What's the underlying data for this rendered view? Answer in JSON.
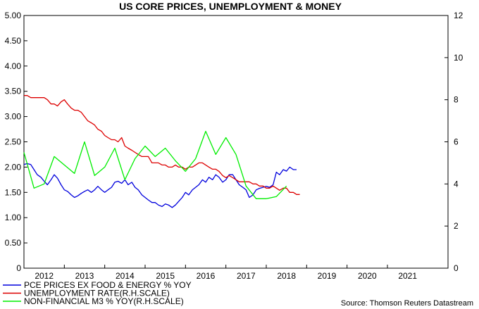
{
  "chart_data": {
    "type": "line",
    "title": "US CORE PRICES, UNEMPLOYMENT & MONEY",
    "source": "Source: Thomson Reuters Datastream",
    "x_ticks": [
      "2012",
      "2013",
      "2014",
      "2015",
      "2016",
      "2017",
      "2018",
      "2019",
      "2020",
      "2021"
    ],
    "x_range": [
      2011.5,
      2022.0
    ],
    "y_left": {
      "min": 0,
      "max": 5,
      "ticks": [
        "0",
        "0.50",
        "1.00",
        "1.50",
        "2.00",
        "2.50",
        "3.00",
        "3.50",
        "4.00",
        "4.50",
        "5.00"
      ]
    },
    "y_right": {
      "min": 0,
      "max": 12,
      "ticks": [
        "0",
        "2",
        "4",
        "6",
        "8",
        "10",
        "12"
      ]
    },
    "series": [
      {
        "name": "PCE PRICES EX FOOD & ENERGY % YOY",
        "axis": "left",
        "color": "#0000dd",
        "x": [
          2011.5,
          2011.58,
          2011.67,
          2011.75,
          2011.83,
          2011.92,
          2012.0,
          2012.08,
          2012.17,
          2012.25,
          2012.33,
          2012.42,
          2012.5,
          2012.58,
          2012.67,
          2012.75,
          2012.83,
          2012.92,
          2013.0,
          2013.08,
          2013.17,
          2013.25,
          2013.33,
          2013.42,
          2013.5,
          2013.58,
          2013.67,
          2013.75,
          2013.83,
          2013.92,
          2014.0,
          2014.08,
          2014.17,
          2014.25,
          2014.33,
          2014.42,
          2014.5,
          2014.58,
          2014.67,
          2014.75,
          2014.83,
          2014.92,
          2015.0,
          2015.08,
          2015.17,
          2015.25,
          2015.33,
          2015.42,
          2015.5,
          2015.58,
          2015.67,
          2015.75,
          2015.83,
          2015.92,
          2016.0,
          2016.08,
          2016.17,
          2016.25,
          2016.33,
          2016.42,
          2016.5,
          2016.58,
          2016.67,
          2016.75,
          2016.83,
          2016.92,
          2017.0,
          2017.08,
          2017.17,
          2017.25,
          2017.33,
          2017.42,
          2017.5,
          2017.58,
          2017.67,
          2017.75,
          2017.83,
          2017.92,
          2018.0,
          2018.08,
          2018.17,
          2018.25
        ],
        "y": [
          2.05,
          2.07,
          2.05,
          1.95,
          1.85,
          1.8,
          1.72,
          1.65,
          1.75,
          1.85,
          1.78,
          1.65,
          1.55,
          1.52,
          1.45,
          1.4,
          1.43,
          1.48,
          1.52,
          1.55,
          1.5,
          1.55,
          1.62,
          1.55,
          1.5,
          1.55,
          1.6,
          1.7,
          1.72,
          1.68,
          1.75,
          1.65,
          1.7,
          1.6,
          1.55,
          1.45,
          1.4,
          1.35,
          1.3,
          1.3,
          1.25,
          1.22,
          1.27,
          1.25,
          1.2,
          1.25,
          1.32,
          1.4,
          1.5,
          1.45,
          1.55,
          1.6,
          1.65,
          1.75,
          1.7,
          1.8,
          1.75,
          1.85,
          1.8,
          1.7,
          1.75,
          1.85,
          1.85,
          1.75,
          1.65,
          1.6,
          1.55,
          1.4,
          1.45,
          1.55,
          1.58,
          1.6,
          1.62,
          1.6,
          1.65,
          1.9,
          1.85,
          1.95,
          1.92,
          2.0,
          1.95,
          1.95
        ]
      },
      {
        "name": "UNEMPLOYMENT RATE(R.H.SCALE)",
        "axis": "right",
        "color": "#dd0000",
        "x": [
          2011.5,
          2011.58,
          2011.67,
          2011.75,
          2011.83,
          2011.92,
          2012.0,
          2012.08,
          2012.17,
          2012.25,
          2012.33,
          2012.42,
          2012.5,
          2012.58,
          2012.67,
          2012.75,
          2012.83,
          2012.92,
          2013.0,
          2013.08,
          2013.17,
          2013.25,
          2013.33,
          2013.42,
          2013.5,
          2013.58,
          2013.67,
          2013.75,
          2013.83,
          2013.92,
          2014.0,
          2014.08,
          2014.17,
          2014.25,
          2014.33,
          2014.42,
          2014.5,
          2014.58,
          2014.67,
          2014.75,
          2014.83,
          2014.92,
          2015.0,
          2015.08,
          2015.17,
          2015.25,
          2015.33,
          2015.42,
          2015.5,
          2015.58,
          2015.67,
          2015.75,
          2015.83,
          2015.92,
          2016.0,
          2016.08,
          2016.17,
          2016.25,
          2016.33,
          2016.42,
          2016.5,
          2016.58,
          2016.67,
          2016.75,
          2016.83,
          2016.92,
          2017.0,
          2017.08,
          2017.17,
          2017.25,
          2017.33,
          2017.42,
          2017.5,
          2017.58,
          2017.67,
          2017.75,
          2017.83,
          2017.92,
          2018.0,
          2018.08,
          2018.17,
          2018.25,
          2018.33
        ],
        "y": [
          8.2,
          8.2,
          8.1,
          8.1,
          8.1,
          8.1,
          8.1,
          8.0,
          7.8,
          7.8,
          7.7,
          7.9,
          8.0,
          7.8,
          7.6,
          7.5,
          7.5,
          7.4,
          7.2,
          7.0,
          6.9,
          6.8,
          6.6,
          6.5,
          6.3,
          6.2,
          6.1,
          6.1,
          6.0,
          6.2,
          5.8,
          5.7,
          5.6,
          5.5,
          5.4,
          5.3,
          5.3,
          5.3,
          5.0,
          5.0,
          5.0,
          4.9,
          4.9,
          4.8,
          4.8,
          4.9,
          4.8,
          4.8,
          4.7,
          4.8,
          4.8,
          4.9,
          5.0,
          5.0,
          4.9,
          4.8,
          4.7,
          4.7,
          4.6,
          4.4,
          4.3,
          4.4,
          4.3,
          4.2,
          4.1,
          4.1,
          4.1,
          4.1,
          4.0,
          4.0,
          3.9,
          3.9,
          3.8,
          3.8,
          3.9,
          3.8,
          3.7,
          3.8,
          3.8,
          3.6,
          3.6,
          3.5,
          3.5
        ]
      },
      {
        "name": "NON-FINANCIAL M3 % YOY(R.H.SCALE)",
        "axis": "right",
        "color": "#00ee00",
        "x": [
          2011.5,
          2011.75,
          2012.0,
          2012.25,
          2012.75,
          2013.0,
          2013.25,
          2013.5,
          2013.75,
          2014.0,
          2014.25,
          2014.5,
          2014.75,
          2015.0,
          2015.25,
          2015.5,
          2015.75,
          2016.0,
          2016.25,
          2016.5,
          2016.75,
          2017.0,
          2017.25,
          2017.5,
          2017.75,
          2018.0
        ],
        "y": [
          5.5,
          3.8,
          4.0,
          5.3,
          4.5,
          6.0,
          4.4,
          4.8,
          5.7,
          4.2,
          5.2,
          5.8,
          5.3,
          5.7,
          5.1,
          4.6,
          5.2,
          6.5,
          5.4,
          6.2,
          5.4,
          3.9,
          3.3,
          3.3,
          3.4,
          3.9
        ]
      }
    ]
  }
}
